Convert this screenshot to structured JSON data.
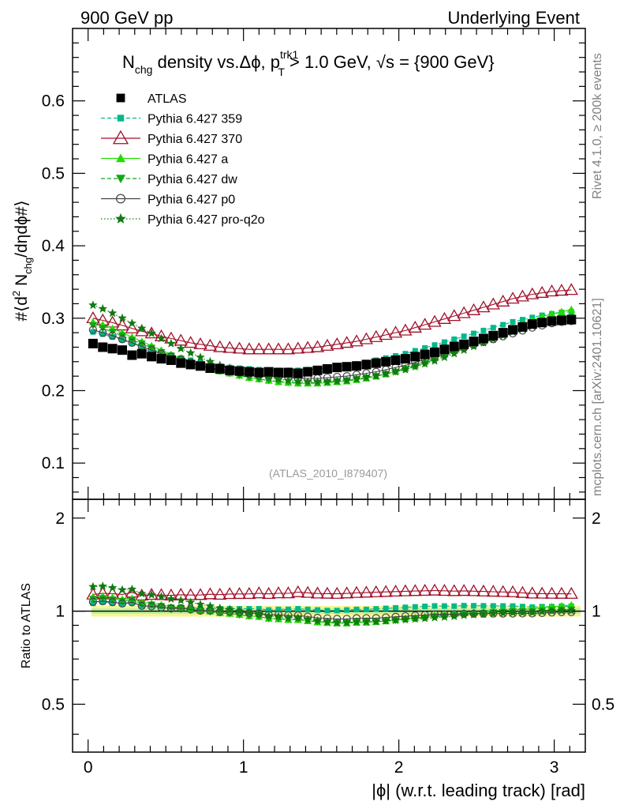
{
  "header": {
    "left": "900 GeV pp",
    "right": "Underlying Event"
  },
  "side_labels": {
    "rivet": "Rivet 4.1.0, ≥ 200k events",
    "mcplots": "mcplots.cern.ch [arXiv:2401.10621]"
  },
  "watermark": "(ATLAS_2010_I879407)",
  "chart_data": {
    "type": "scatter",
    "title": {
      "n": "N",
      "chg": "chg",
      "mid": " density vs.Δϕ, p",
      "sup": "trk1",
      "sub": "T",
      "cut": " > 1.0 GeV, √s = {900 GeV}"
    },
    "xlabel": "|ϕ| (w.r.t. leading track) [rad]",
    "ylabel": {
      "a": "#⟨d",
      "b": "2",
      "c": " N",
      "d": "chg",
      "e": "/dηdϕ#⟩"
    },
    "ratio_ylabel": "Ratio to ATLAS",
    "xlim": [
      -0.1,
      3.2
    ],
    "ylim": [
      0.05,
      0.7
    ],
    "ratio_ylim": [
      0.35,
      2.3
    ],
    "x_ticks": [
      "0",
      "1",
      "2",
      "3"
    ],
    "y_ticks": [
      "0.1",
      "0.2",
      "0.3",
      "0.4",
      "0.5",
      "0.6"
    ],
    "ratio_ticks": [
      "0.5",
      "1",
      "2"
    ],
    "x": [
      0.0314,
      0.0942,
      0.157,
      0.2199,
      0.2827,
      0.3456,
      0.4084,
      0.4712,
      0.5341,
      0.5969,
      0.6597,
      0.7226,
      0.7854,
      0.8482,
      0.9111,
      0.9739,
      1.0367,
      1.0996,
      1.1624,
      1.2252,
      1.2881,
      1.3509,
      1.4137,
      1.4765,
      1.5394,
      1.6022,
      1.665,
      1.7279,
      1.7907,
      1.8535,
      1.9164,
      1.9792,
      2.042,
      2.1049,
      2.1677,
      2.2305,
      2.2934,
      2.3562,
      2.419,
      2.4819,
      2.5447,
      2.6075,
      2.6704,
      2.7332,
      2.796,
      2.8588,
      2.9217,
      2.9845,
      3.0473,
      3.1102
    ],
    "series": [
      {
        "name": "ATLAS",
        "marker": "square",
        "color": "#000000",
        "line": "none",
        "values": [
          0.265,
          0.26,
          0.258,
          0.256,
          0.249,
          0.251,
          0.247,
          0.244,
          0.242,
          0.238,
          0.236,
          0.234,
          0.231,
          0.23,
          0.228,
          0.227,
          0.226,
          0.225,
          0.226,
          0.225,
          0.225,
          0.224,
          0.226,
          0.228,
          0.23,
          0.232,
          0.233,
          0.234,
          0.236,
          0.238,
          0.24,
          0.242,
          0.244,
          0.247,
          0.25,
          0.253,
          0.257,
          0.261,
          0.264,
          0.268,
          0.272,
          0.276,
          0.28,
          0.284,
          0.288,
          0.292,
          0.294,
          0.296,
          0.297,
          0.298
        ]
      },
      {
        "name": "Pythia 6.427 359",
        "marker": "smallsquare",
        "color": "#00b98a",
        "line": "dashed",
        "values": [
          0.281,
          0.278,
          0.274,
          0.27,
          0.265,
          0.261,
          0.257,
          0.253,
          0.249,
          0.245,
          0.242,
          0.239,
          0.236,
          0.234,
          0.232,
          0.231,
          0.23,
          0.229,
          0.228,
          0.228,
          0.228,
          0.228,
          0.229,
          0.23,
          0.231,
          0.233,
          0.235,
          0.237,
          0.239,
          0.242,
          0.245,
          0.248,
          0.251,
          0.255,
          0.259,
          0.263,
          0.267,
          0.271,
          0.275,
          0.279,
          0.283,
          0.287,
          0.291,
          0.295,
          0.298,
          0.301,
          0.304,
          0.306,
          0.308,
          0.309
        ]
      },
      {
        "name": "Pythia 6.427 370",
        "marker": "triangle-open",
        "color": "#a0102a",
        "line": "solid",
        "values": [
          0.3,
          0.297,
          0.294,
          0.29,
          0.286,
          0.282,
          0.279,
          0.275,
          0.272,
          0.269,
          0.266,
          0.264,
          0.262,
          0.26,
          0.259,
          0.258,
          0.257,
          0.257,
          0.257,
          0.257,
          0.257,
          0.258,
          0.259,
          0.26,
          0.262,
          0.264,
          0.266,
          0.268,
          0.271,
          0.274,
          0.277,
          0.28,
          0.283,
          0.287,
          0.291,
          0.295,
          0.299,
          0.303,
          0.307,
          0.311,
          0.315,
          0.319,
          0.323,
          0.327,
          0.33,
          0.333,
          0.335,
          0.337,
          0.338,
          0.339
        ]
      },
      {
        "name": "Pythia 6.427 a",
        "marker": "triangle",
        "color": "#22dd00",
        "line": "solid",
        "values": [
          0.295,
          0.291,
          0.286,
          0.28,
          0.274,
          0.268,
          0.262,
          0.256,
          0.25,
          0.245,
          0.24,
          0.235,
          0.231,
          0.227,
          0.224,
          0.221,
          0.218,
          0.216,
          0.214,
          0.212,
          0.211,
          0.21,
          0.21,
          0.21,
          0.211,
          0.212,
          0.213,
          0.215,
          0.217,
          0.22,
          0.223,
          0.227,
          0.231,
          0.235,
          0.24,
          0.245,
          0.25,
          0.255,
          0.261,
          0.266,
          0.271,
          0.277,
          0.282,
          0.287,
          0.292,
          0.297,
          0.302,
          0.306,
          0.309,
          0.312
        ]
      },
      {
        "name": "Pythia 6.427 dw",
        "marker": "triangle-down",
        "color": "#11a811",
        "line": "dashed",
        "values": [
          0.29,
          0.286,
          0.281,
          0.276,
          0.27,
          0.265,
          0.259,
          0.253,
          0.248,
          0.243,
          0.238,
          0.234,
          0.23,
          0.227,
          0.224,
          0.221,
          0.218,
          0.216,
          0.214,
          0.213,
          0.212,
          0.211,
          0.211,
          0.211,
          0.212,
          0.213,
          0.214,
          0.216,
          0.218,
          0.22,
          0.223,
          0.226,
          0.23,
          0.234,
          0.238,
          0.243,
          0.248,
          0.253,
          0.258,
          0.263,
          0.268,
          0.273,
          0.278,
          0.283,
          0.287,
          0.291,
          0.295,
          0.298,
          0.3,
          0.301
        ]
      },
      {
        "name": "Pythia 6.427 p0",
        "marker": "circle-open",
        "color": "#444444",
        "line": "solid",
        "values": [
          0.284,
          0.28,
          0.276,
          0.271,
          0.266,
          0.261,
          0.256,
          0.251,
          0.247,
          0.243,
          0.239,
          0.235,
          0.232,
          0.229,
          0.227,
          0.225,
          0.223,
          0.221,
          0.22,
          0.219,
          0.218,
          0.217,
          0.217,
          0.217,
          0.218,
          0.219,
          0.22,
          0.222,
          0.224,
          0.226,
          0.229,
          0.232,
          0.235,
          0.239,
          0.243,
          0.247,
          0.251,
          0.255,
          0.259,
          0.263,
          0.267,
          0.271,
          0.275,
          0.279,
          0.283,
          0.287,
          0.29,
          0.293,
          0.295,
          0.296
        ]
      },
      {
        "name": "Pythia 6.427 pro-q2o",
        "marker": "star",
        "color": "#117a11",
        "line": "dotted",
        "values": [
          0.318,
          0.313,
          0.307,
          0.3,
          0.293,
          0.286,
          0.279,
          0.272,
          0.265,
          0.258,
          0.252,
          0.246,
          0.24,
          0.235,
          0.231,
          0.227,
          0.224,
          0.221,
          0.218,
          0.216,
          0.214,
          0.213,
          0.212,
          0.212,
          0.212,
          0.213,
          0.214,
          0.216,
          0.218,
          0.22,
          0.223,
          0.226,
          0.229,
          0.233,
          0.237,
          0.241,
          0.246,
          0.251,
          0.256,
          0.261,
          0.266,
          0.271,
          0.276,
          0.281,
          0.285,
          0.289,
          0.293,
          0.296,
          0.298,
          0.299
        ]
      }
    ]
  }
}
